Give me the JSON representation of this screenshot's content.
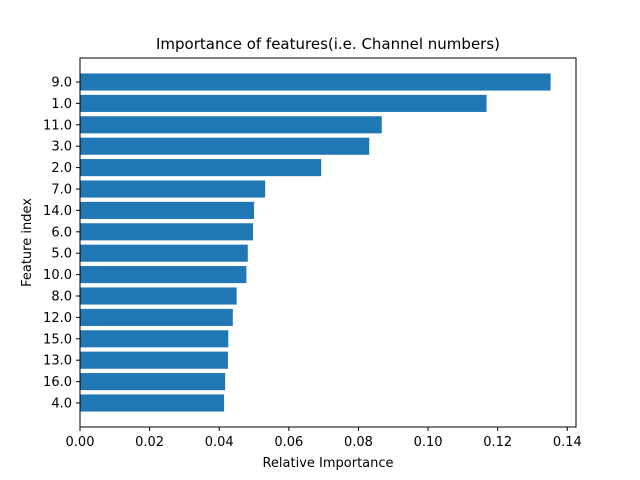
{
  "chart_data": {
    "type": "bar",
    "orientation": "horizontal",
    "title": "Importance of features(i.e. Channel numbers)",
    "xlabel": "Relative Importance",
    "ylabel": "Feature index",
    "bar_color": "#1f77b4",
    "xlim": [
      0,
      0.1425
    ],
    "xticks": [
      "0.00",
      "0.02",
      "0.04",
      "0.06",
      "0.08",
      "0.10",
      "0.12",
      "0.14"
    ],
    "categories": [
      "9.0",
      "1.0",
      "11.0",
      "3.0",
      "2.0",
      "7.0",
      "14.0",
      "6.0",
      "5.0",
      "10.0",
      "8.0",
      "12.0",
      "15.0",
      "13.0",
      "16.0",
      "4.0"
    ],
    "values": [
      0.1352,
      0.1168,
      0.0867,
      0.0831,
      0.0693,
      0.0532,
      0.05,
      0.0497,
      0.0482,
      0.0478,
      0.045,
      0.0439,
      0.0426,
      0.0425,
      0.0417,
      0.0414
    ],
    "grid": false,
    "legend": "none"
  }
}
